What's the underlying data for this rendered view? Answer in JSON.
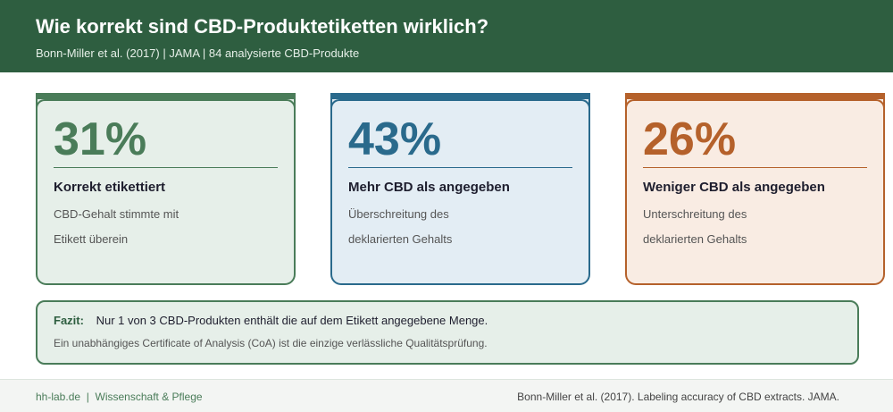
{
  "header": {
    "title": "Wie korrekt sind CBD-Produktetiketten wirklich?",
    "subtitle": "Bonn-Miller et al. (2017) | JAMA | 84 analysierte CBD-Produkte"
  },
  "cards": [
    {
      "value": "31%",
      "label": "Korrekt etikettiert",
      "desc_line1": "CBD-Gehalt stimmte mit",
      "desc_line2": "Etikett überein",
      "color": "#4a7c59",
      "bg": "#e6efe9"
    },
    {
      "value": "43%",
      "label": "Mehr CBD als angegeben",
      "desc_line1": "Überschreitung des",
      "desc_line2": "deklarierten Gehalts",
      "color": "#2a6a8c",
      "bg": "#e3edf4"
    },
    {
      "value": "26%",
      "label": "Weniger CBD als angegeben",
      "desc_line1": "Unterschreitung des",
      "desc_line2": "deklarierten Gehalts",
      "color": "#b5612b",
      "bg": "#f9ece3"
    }
  ],
  "fazit": {
    "label": "Fazit:",
    "text": "Nur 1 von 3 CBD-Produkten enthält die auf dem Etikett angegebene Menge.",
    "note": "Ein unabhängiges Certificate of Analysis (CoA) ist die einzige verlässliche Qualitätsprüfung."
  },
  "footer": {
    "site": "hh-lab.de",
    "sep": "|",
    "section": "Wissenschaft & Pflege",
    "citation": "Bonn-Miller et al. (2017). Labeling accuracy of CBD extracts. JAMA."
  }
}
